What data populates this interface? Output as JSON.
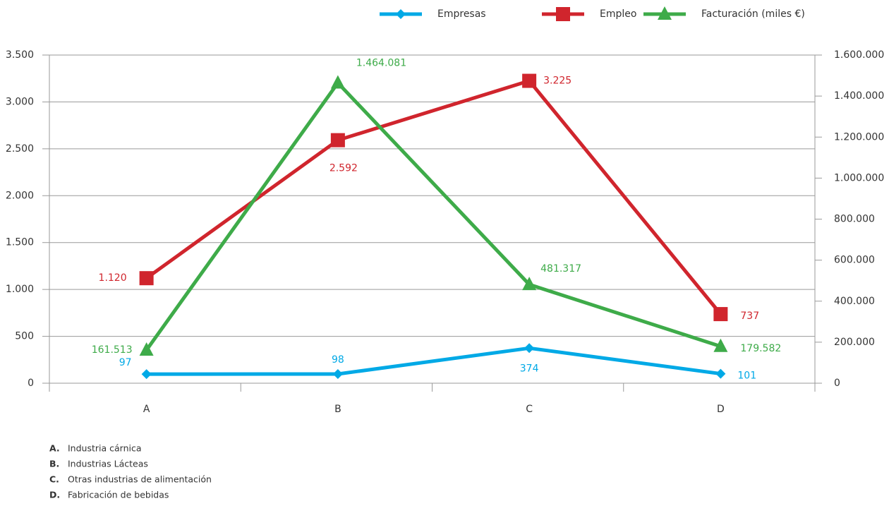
{
  "chart_data": {
    "type": "line",
    "categories": [
      "A",
      "B",
      "C",
      "D"
    ],
    "ylim": [
      0,
      3500
    ],
    "yticks": [
      0,
      {
        "value": 500,
        "label": "500"
      },
      {
        "value": 1000,
        "label": "1.000"
      },
      {
        "value": 1500,
        "label": "1.500"
      },
      {
        "value": 2000,
        "label": "2.000"
      },
      {
        "value": 2500,
        "label": "2.500"
      },
      {
        "value": 3000,
        "label": "3.000"
      },
      {
        "value": 3500,
        "label": "3.500"
      }
    ],
    "y2lim": [
      0,
      1600000
    ],
    "y2ticks": [
      0,
      {
        "value": 200000,
        "label": "200.000"
      },
      {
        "value": 400000,
        "label": "400.000"
      },
      {
        "value": 600000,
        "label": "600.000"
      },
      {
        "value": 800000,
        "label": "800.000"
      },
      {
        "value": 1000000,
        "label": "1.000.000"
      },
      {
        "value": 1200000,
        "label": "1.200.000"
      },
      {
        "value": 1400000,
        "label": "1.400.000"
      },
      {
        "value": 1600000,
        "label": "1.600.000"
      }
    ],
    "grid": true,
    "legend": "top",
    "series": [
      {
        "name": "Empresas",
        "color": "#00a9e6",
        "marker": "diamond",
        "values": [
          97,
          98,
          374,
          101
        ]
      },
      {
        "name": "Empleo",
        "color": "#d0252d",
        "marker": "square",
        "values": [
          1120,
          2592,
          3225,
          737
        ],
        "value_labels": [
          "1.120",
          "2.592",
          "3.225",
          "737"
        ]
      },
      {
        "name": "Facturación (miles €)",
        "color": "#3eab49",
        "marker": "triangle",
        "axis": "y2",
        "values": [
          161513,
          1464081,
          481317,
          179582
        ],
        "value_labels": [
          "161.513",
          "1.464.081",
          "481.317",
          "179.582"
        ]
      }
    ]
  },
  "notes": [
    {
      "letter": "A.",
      "text": "Industria cárnica"
    },
    {
      "letter": "B.",
      "text": "Industrias Lácteas"
    },
    {
      "letter": "C.",
      "text": "Otras industrias de alimentación"
    },
    {
      "letter": "D.",
      "text": "Fabricación de bebidas"
    }
  ]
}
